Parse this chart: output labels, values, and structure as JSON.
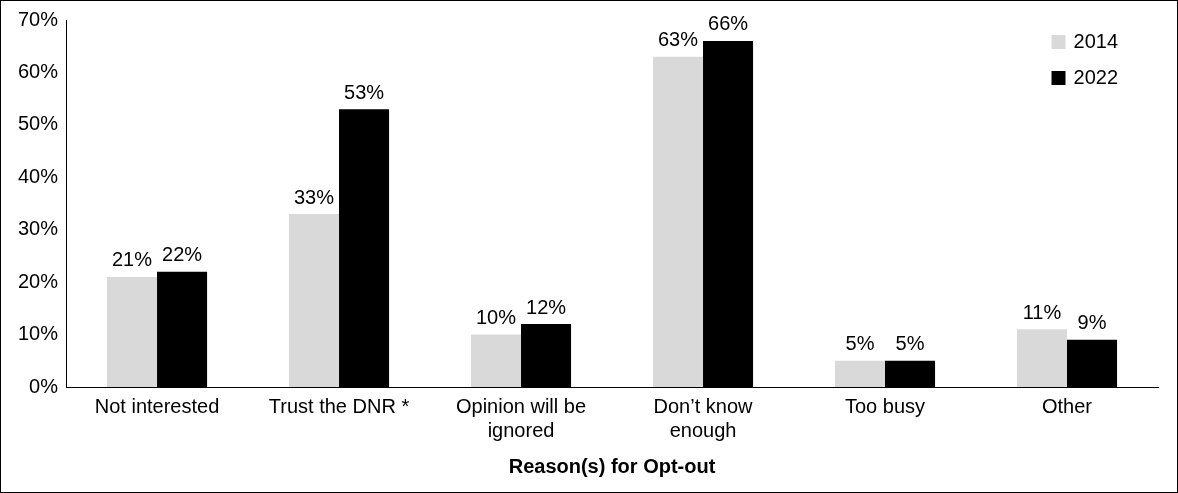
{
  "chart_data": {
    "type": "bar",
    "xlabel": "Reason(s) for Opt-out",
    "categories": [
      "Not interested",
      "Trust the DNR *",
      "Opinion will be ignored",
      "Don’t know enough",
      "Too busy",
      "Other"
    ],
    "series": [
      {
        "name": "2014",
        "color": "#d9d9d9",
        "values": [
          21,
          33,
          10,
          63,
          5,
          11
        ],
        "value_labels": [
          "21%",
          "33%",
          "10%",
          "63%",
          "5%",
          "11%"
        ]
      },
      {
        "name": "2022",
        "color": "#000000",
        "values": [
          22,
          53,
          12,
          66,
          5,
          9
        ],
        "value_labels": [
          "22%",
          "53%",
          "12%",
          "66%",
          "5%",
          "9%"
        ]
      }
    ],
    "ylim": [
      0,
      70
    ],
    "yticks": [
      {
        "value": 0,
        "label": "0%"
      },
      {
        "value": 10,
        "label": "10%"
      },
      {
        "value": 20,
        "label": "20%"
      },
      {
        "value": 30,
        "label": "30%"
      },
      {
        "value": 40,
        "label": "40%"
      },
      {
        "value": 50,
        "label": "50%"
      },
      {
        "value": 60,
        "label": "60%"
      },
      {
        "value": 70,
        "label": "70%"
      }
    ],
    "grid": false,
    "legend": "top right"
  }
}
